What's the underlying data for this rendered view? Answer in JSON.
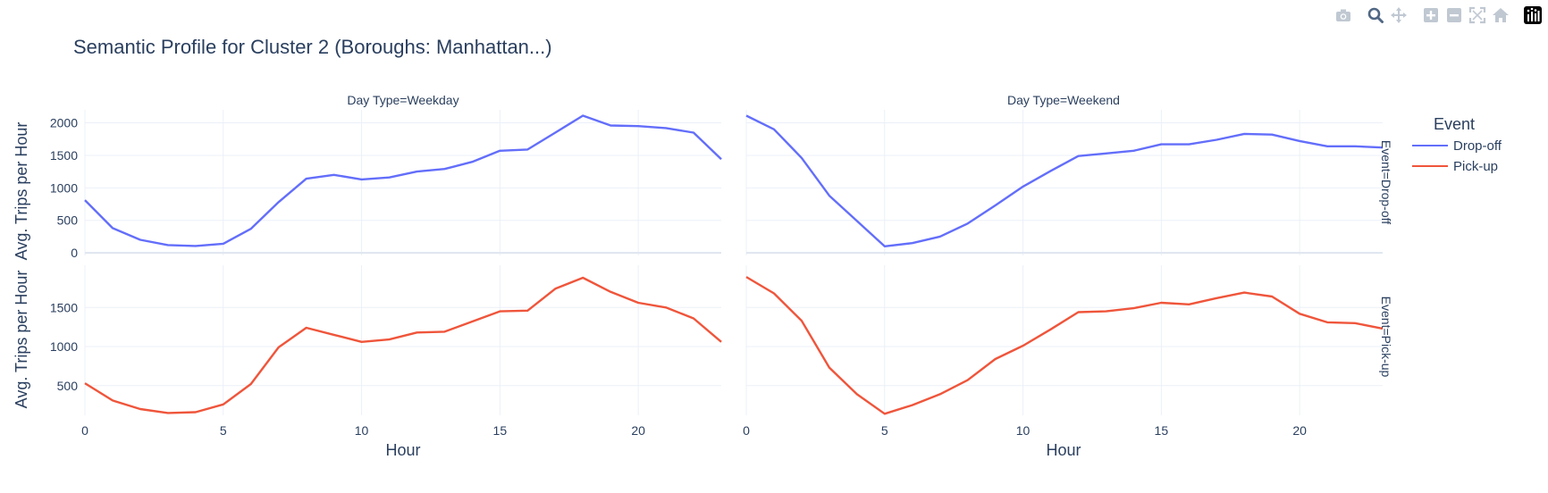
{
  "chart_data": {
    "type": "line",
    "title": "Semantic Profile for Cluster 2 (Boroughs: Manhattan...)",
    "xlabel": "Hour",
    "ylabel": "Avg. Trips per Hour",
    "legend": {
      "title": "Event",
      "placement": "right",
      "items": [
        {
          "name": "Drop-off",
          "color": "#636efa"
        },
        {
          "name": "Pick-up",
          "color": "#EF553B"
        }
      ]
    },
    "facet_columns": [
      {
        "label": "Day Type=Weekday"
      },
      {
        "label": "Day Type=Weekend"
      }
    ],
    "facet_rows": [
      {
        "label": "Event=Drop-off",
        "series": "Drop-off",
        "ylim": [
          -40,
          2200
        ],
        "yticks": [
          0,
          500,
          1000,
          1500,
          2000
        ]
      },
      {
        "label": "Event=Pick-up",
        "series": "Pick-up",
        "ylim": [
          120,
          2040
        ],
        "yticks": [
          500,
          1000,
          1500
        ]
      }
    ],
    "xlim": [
      0,
      23
    ],
    "xticks": [
      0,
      5,
      10,
      15,
      20
    ],
    "x": [
      0,
      1,
      2,
      3,
      4,
      5,
      6,
      7,
      8,
      9,
      10,
      11,
      12,
      13,
      14,
      15,
      16,
      17,
      18,
      19,
      20,
      21,
      22,
      23
    ],
    "series": [
      {
        "name": "Drop-off",
        "day_type": "Weekday",
        "color": "#636efa",
        "values": [
          810,
          380,
          200,
          120,
          105,
          140,
          370,
          780,
          1140,
          1200,
          1130,
          1160,
          1250,
          1290,
          1400,
          1570,
          1590,
          1850,
          2110,
          1960,
          1950,
          1920,
          1850,
          1440
        ]
      },
      {
        "name": "Drop-off",
        "day_type": "Weekend",
        "color": "#636efa",
        "values": [
          2110,
          1900,
          1460,
          880,
          490,
          100,
          150,
          250,
          450,
          730,
          1020,
          1260,
          1490,
          1530,
          1570,
          1670,
          1670,
          1740,
          1830,
          1820,
          1720,
          1640,
          1640,
          1620
        ]
      },
      {
        "name": "Pick-up",
        "day_type": "Weekday",
        "color": "#EF553B",
        "values": [
          530,
          310,
          200,
          150,
          160,
          260,
          520,
          990,
          1240,
          1150,
          1060,
          1090,
          1180,
          1190,
          1320,
          1450,
          1460,
          1740,
          1880,
          1700,
          1560,
          1500,
          1360,
          1060
        ]
      },
      {
        "name": "Pick-up",
        "day_type": "Weekend",
        "color": "#EF553B",
        "values": [
          1890,
          1680,
          1330,
          730,
          390,
          140,
          250,
          390,
          570,
          840,
          1010,
          1220,
          1440,
          1450,
          1490,
          1560,
          1540,
          1620,
          1690,
          1640,
          1420,
          1310,
          1300,
          1230
        ]
      }
    ],
    "grid": true
  },
  "modebar": {
    "buttons": [
      {
        "name": "camera-icon"
      },
      {
        "name": "zoom-icon"
      },
      {
        "name": "pan-icon"
      },
      {
        "name": "zoom-in-icon"
      },
      {
        "name": "zoom-out-icon"
      },
      {
        "name": "autoscale-icon"
      },
      {
        "name": "home-icon"
      },
      {
        "name": "plotly-logo-icon"
      }
    ]
  }
}
